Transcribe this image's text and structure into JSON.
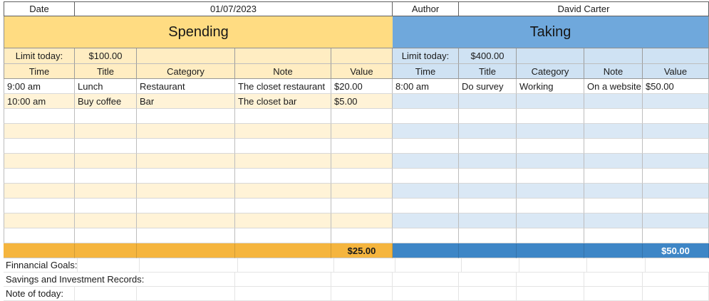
{
  "colors": {
    "spending_title": "#FFDC82",
    "spending_sub": "#FFEDC2",
    "spending_band": "#FFF3D7",
    "spending_footer": "#F5B53E",
    "taking_title": "#6FA8DC",
    "taking_sub": "#CFE2F3",
    "taking_band": "#DAE8F5",
    "taking_footer": "#3E86C6",
    "total_text_spending": "#1A1A1A",
    "total_text_taking": "#FFFFFF"
  },
  "top_row": {
    "date_label": "Date",
    "date_value": "01/07/2023",
    "author_label": "Author",
    "author_value": "David Carter"
  },
  "spending": {
    "title": "Spending",
    "limit_label": "Limit today:",
    "limit_value": "$100.00",
    "columns": [
      "Time",
      "Title",
      "Category",
      "Note",
      "Value"
    ],
    "rows": [
      [
        "9:00 am",
        "Lunch",
        "Restaurant",
        "The closet restaurant",
        "$20.00"
      ],
      [
        "10:00 am",
        "Buy coffee",
        "Bar",
        "The closet bar",
        "$5.00"
      ],
      [
        "",
        "",
        "",
        "",
        ""
      ],
      [
        "",
        "",
        "",
        "",
        ""
      ],
      [
        "",
        "",
        "",
        "",
        ""
      ],
      [
        "",
        "",
        "",
        "",
        ""
      ],
      [
        "",
        "",
        "",
        "",
        ""
      ],
      [
        "",
        "",
        "",
        "",
        ""
      ],
      [
        "",
        "",
        "",
        "",
        ""
      ],
      [
        "",
        "",
        "",
        "",
        ""
      ],
      [
        "",
        "",
        "",
        "",
        ""
      ]
    ],
    "total": "$25.00"
  },
  "taking": {
    "title": "Taking",
    "limit_label": "Limit today:",
    "limit_value": "$400.00",
    "columns": [
      "Time",
      "Title",
      "Category",
      "Note",
      "Value"
    ],
    "rows": [
      [
        "8:00 am",
        "Do survey",
        "Working",
        "On a website",
        "$50.00"
      ],
      [
        "",
        "",
        "",
        "",
        ""
      ],
      [
        "",
        "",
        "",
        "",
        ""
      ],
      [
        "",
        "",
        "",
        "",
        ""
      ],
      [
        "",
        "",
        "",
        "",
        ""
      ],
      [
        "",
        "",
        "",
        "",
        ""
      ],
      [
        "",
        "",
        "",
        "",
        ""
      ],
      [
        "",
        "",
        "",
        "",
        ""
      ],
      [
        "",
        "",
        "",
        "",
        ""
      ],
      [
        "",
        "",
        "",
        "",
        ""
      ],
      [
        "",
        "",
        "",
        "",
        ""
      ]
    ],
    "total": "$50.00"
  },
  "bottom_labels": [
    "Finnancial Goals:",
    "Savings and Investment Records:",
    "Note of today:"
  ]
}
